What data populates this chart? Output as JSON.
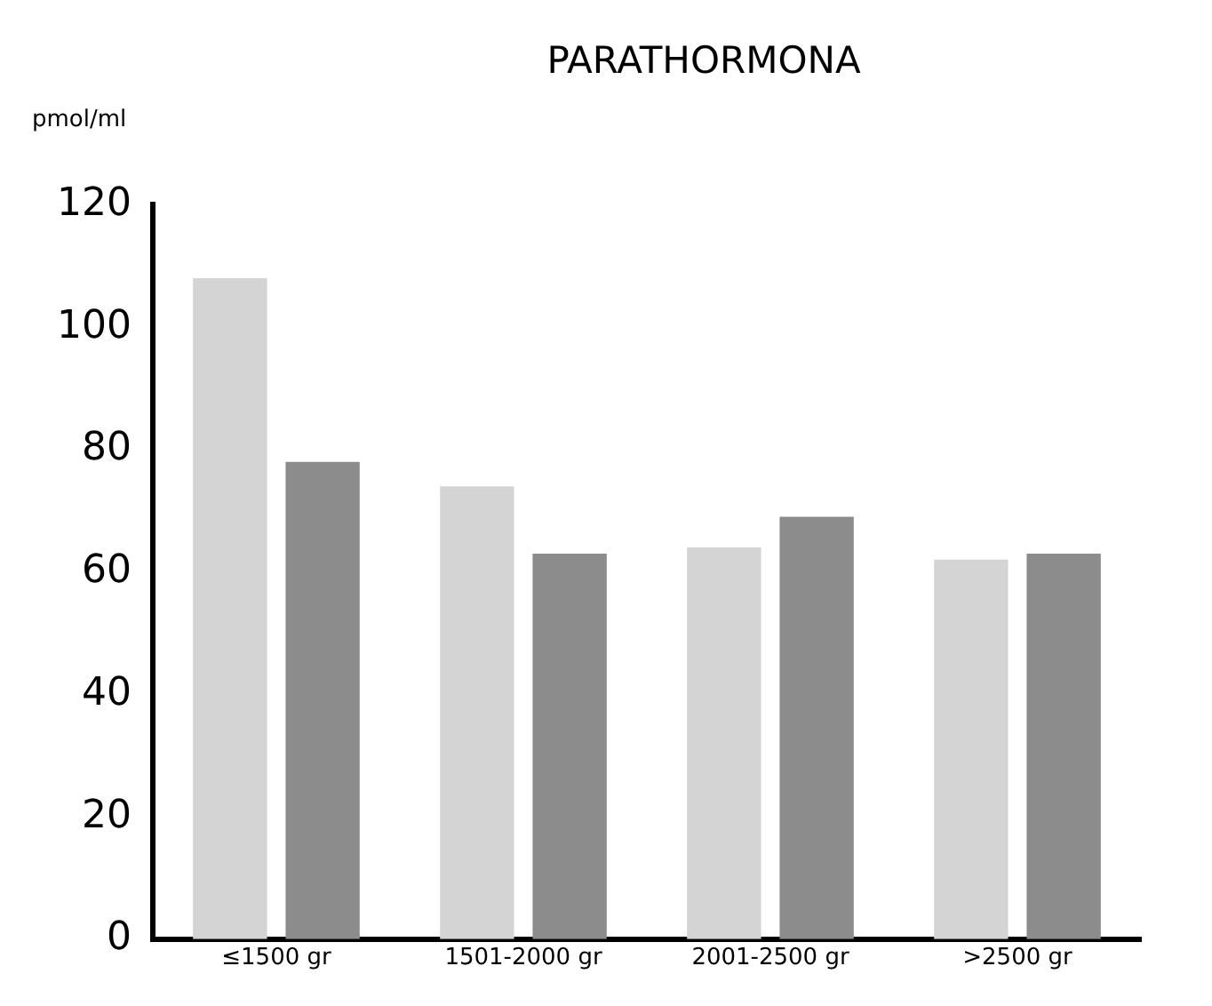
{
  "chart_data": {
    "type": "bar",
    "title": "PARATHORMONA",
    "ylabel": "pmol/ml",
    "categories": [
      "≤1500 gr",
      "1501-2000 gr",
      "2001-2500 gr",
      ">2500 gr"
    ],
    "series": [
      {
        "color": "#d4d4d4",
        "values": [
          108,
          74,
          64,
          62
        ]
      },
      {
        "color": "#8c8c8c",
        "values": [
          78,
          63,
          69,
          63
        ]
      }
    ],
    "ylim": [
      0,
      120
    ],
    "yticks": [
      0,
      20,
      40,
      60,
      80,
      100,
      120
    ],
    "grid": false,
    "legend": false
  }
}
